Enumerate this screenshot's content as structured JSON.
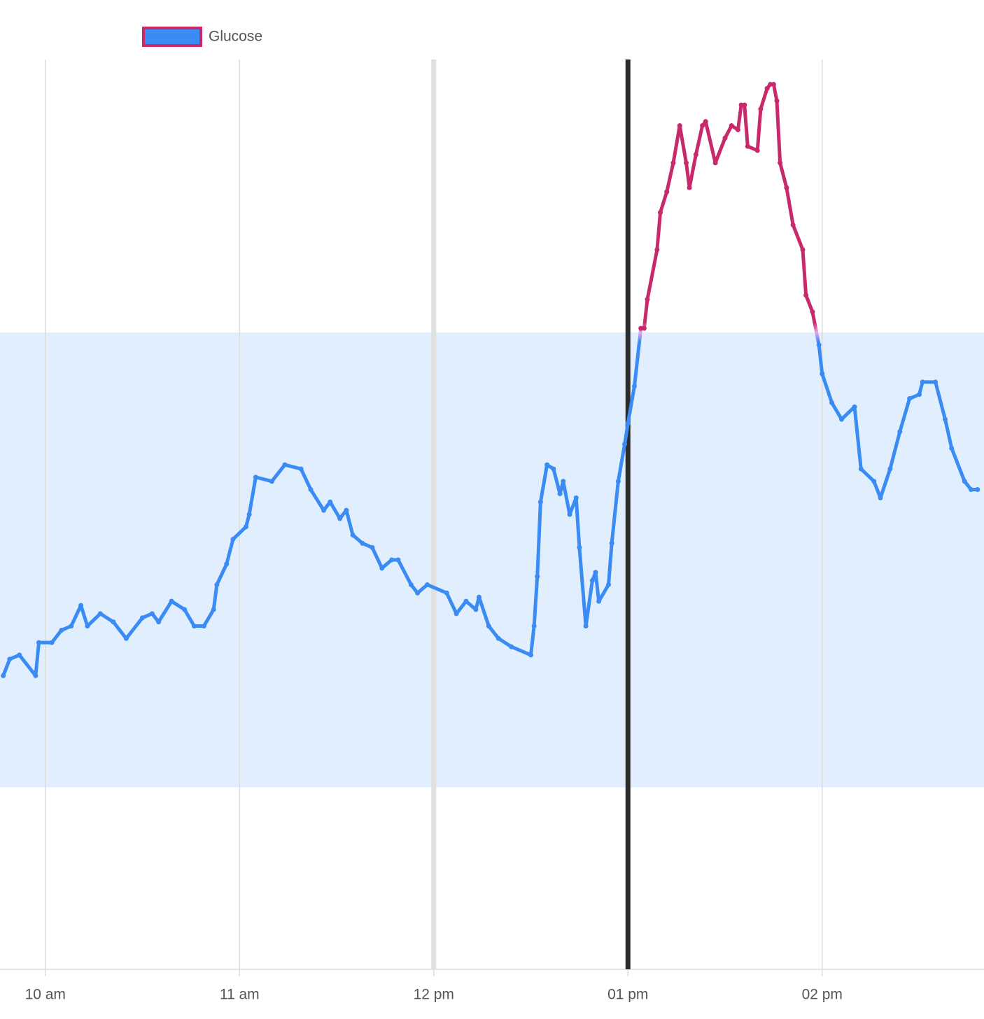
{
  "chart_data": {
    "type": "line",
    "x": [
      "09:47",
      "09:49",
      "09:52",
      "09:57",
      "09:58",
      "10:02",
      "10:05",
      "10:08",
      "10:11",
      "10:13",
      "10:17",
      "10:21",
      "10:25",
      "10:30",
      "10:33",
      "10:35",
      "10:39",
      "10:43",
      "10:46",
      "10:49",
      "10:52",
      "10:53",
      "10:56",
      "10:58",
      "11:02",
      "11:03",
      "11:05",
      "11:10",
      "11:14",
      "11:19",
      "11:22",
      "11:26",
      "11:28",
      "11:31",
      "11:33",
      "11:35",
      "11:38",
      "11:41",
      "11:44",
      "11:47",
      "11:49",
      "11:53",
      "11:55",
      "11:58",
      "12:04",
      "12:07",
      "12:10",
      "12:13",
      "12:14",
      "12:17",
      "12:20",
      "12:24",
      "12:30",
      "12:31",
      "12:32",
      "12:33",
      "12:35",
      "12:37",
      "12:39",
      "12:40",
      "12:42",
      "12:44",
      "12:45",
      "12:47",
      "12:49",
      "12:50",
      "12:51",
      "12:54",
      "12:55",
      "12:57",
      "12:59",
      "13:00",
      "13:02",
      "13:04",
      "13:05",
      "13:06",
      "13:09",
      "13:10",
      "13:12",
      "13:14",
      "13:16",
      "13:18",
      "13:19",
      "13:21",
      "13:23",
      "13:24",
      "13:27",
      "13:30",
      "13:32",
      "13:34",
      "13:35",
      "13:36",
      "13:37",
      "13:40",
      "13:41",
      "13:43",
      "13:44",
      "13:45",
      "13:46",
      "13:47",
      "13:49",
      "13:51",
      "13:54",
      "13:55",
      "13:57",
      "13:59",
      "14:00",
      "14:03",
      "14:06",
      "14:10",
      "14:12",
      "14:16",
      "14:18",
      "14:21",
      "14:24",
      "14:27",
      "14:30",
      "14:31",
      "14:35",
      "14:38",
      "14:40",
      "14:44",
      "14:46",
      "14:48"
    ],
    "series": [
      {
        "name": "Glucose",
        "color": "#3b8bf5",
        "high_color": "#c8296b",
        "values": [
          97,
          101,
          102,
          97,
          105,
          105,
          108,
          109,
          114,
          109,
          112,
          110,
          106,
          111,
          112,
          110,
          115,
          113,
          109,
          109,
          113,
          119,
          124,
          130,
          133,
          136,
          145,
          144,
          148,
          147,
          142,
          137,
          139,
          135,
          137,
          131,
          129,
          128,
          123,
          125,
          125,
          119,
          117,
          119,
          117,
          112,
          115,
          113,
          116,
          109,
          106,
          104,
          102,
          109,
          121,
          139,
          148,
          147,
          141,
          144,
          136,
          140,
          128,
          109,
          120,
          122,
          115,
          119,
          129,
          144,
          153,
          158,
          167,
          181,
          181,
          188,
          200,
          209,
          214,
          221,
          230,
          221,
          215,
          223,
          230,
          231,
          221,
          227,
          230,
          229,
          235,
          235,
          225,
          224,
          234,
          239,
          240,
          240,
          236,
          221,
          215,
          206,
          200,
          189,
          185,
          177,
          170,
          163,
          159,
          162,
          147,
          144,
          140,
          147,
          156,
          164,
          165,
          168,
          168,
          159,
          152,
          144,
          142,
          142
        ]
      }
    ],
    "xlim": [
      "09:46",
      "14:50"
    ],
    "ylim": [
      26,
      246
    ],
    "xticks": [
      {
        "value": "10:00",
        "label": "10 am"
      },
      {
        "value": "11:00",
        "label": "11 am"
      },
      {
        "value": "12:00",
        "label": "12 pm"
      },
      {
        "value": "13:00",
        "label": "01 pm"
      },
      {
        "value": "14:00",
        "label": "02 pm"
      }
    ],
    "target_range": [
      70,
      180
    ],
    "target_color": "#e0eefd",
    "markers": [
      {
        "x": "12:00",
        "color": "#e0e0e0"
      },
      {
        "x": "13:00",
        "color": "#2b2b2b"
      }
    ],
    "grid": true
  }
}
